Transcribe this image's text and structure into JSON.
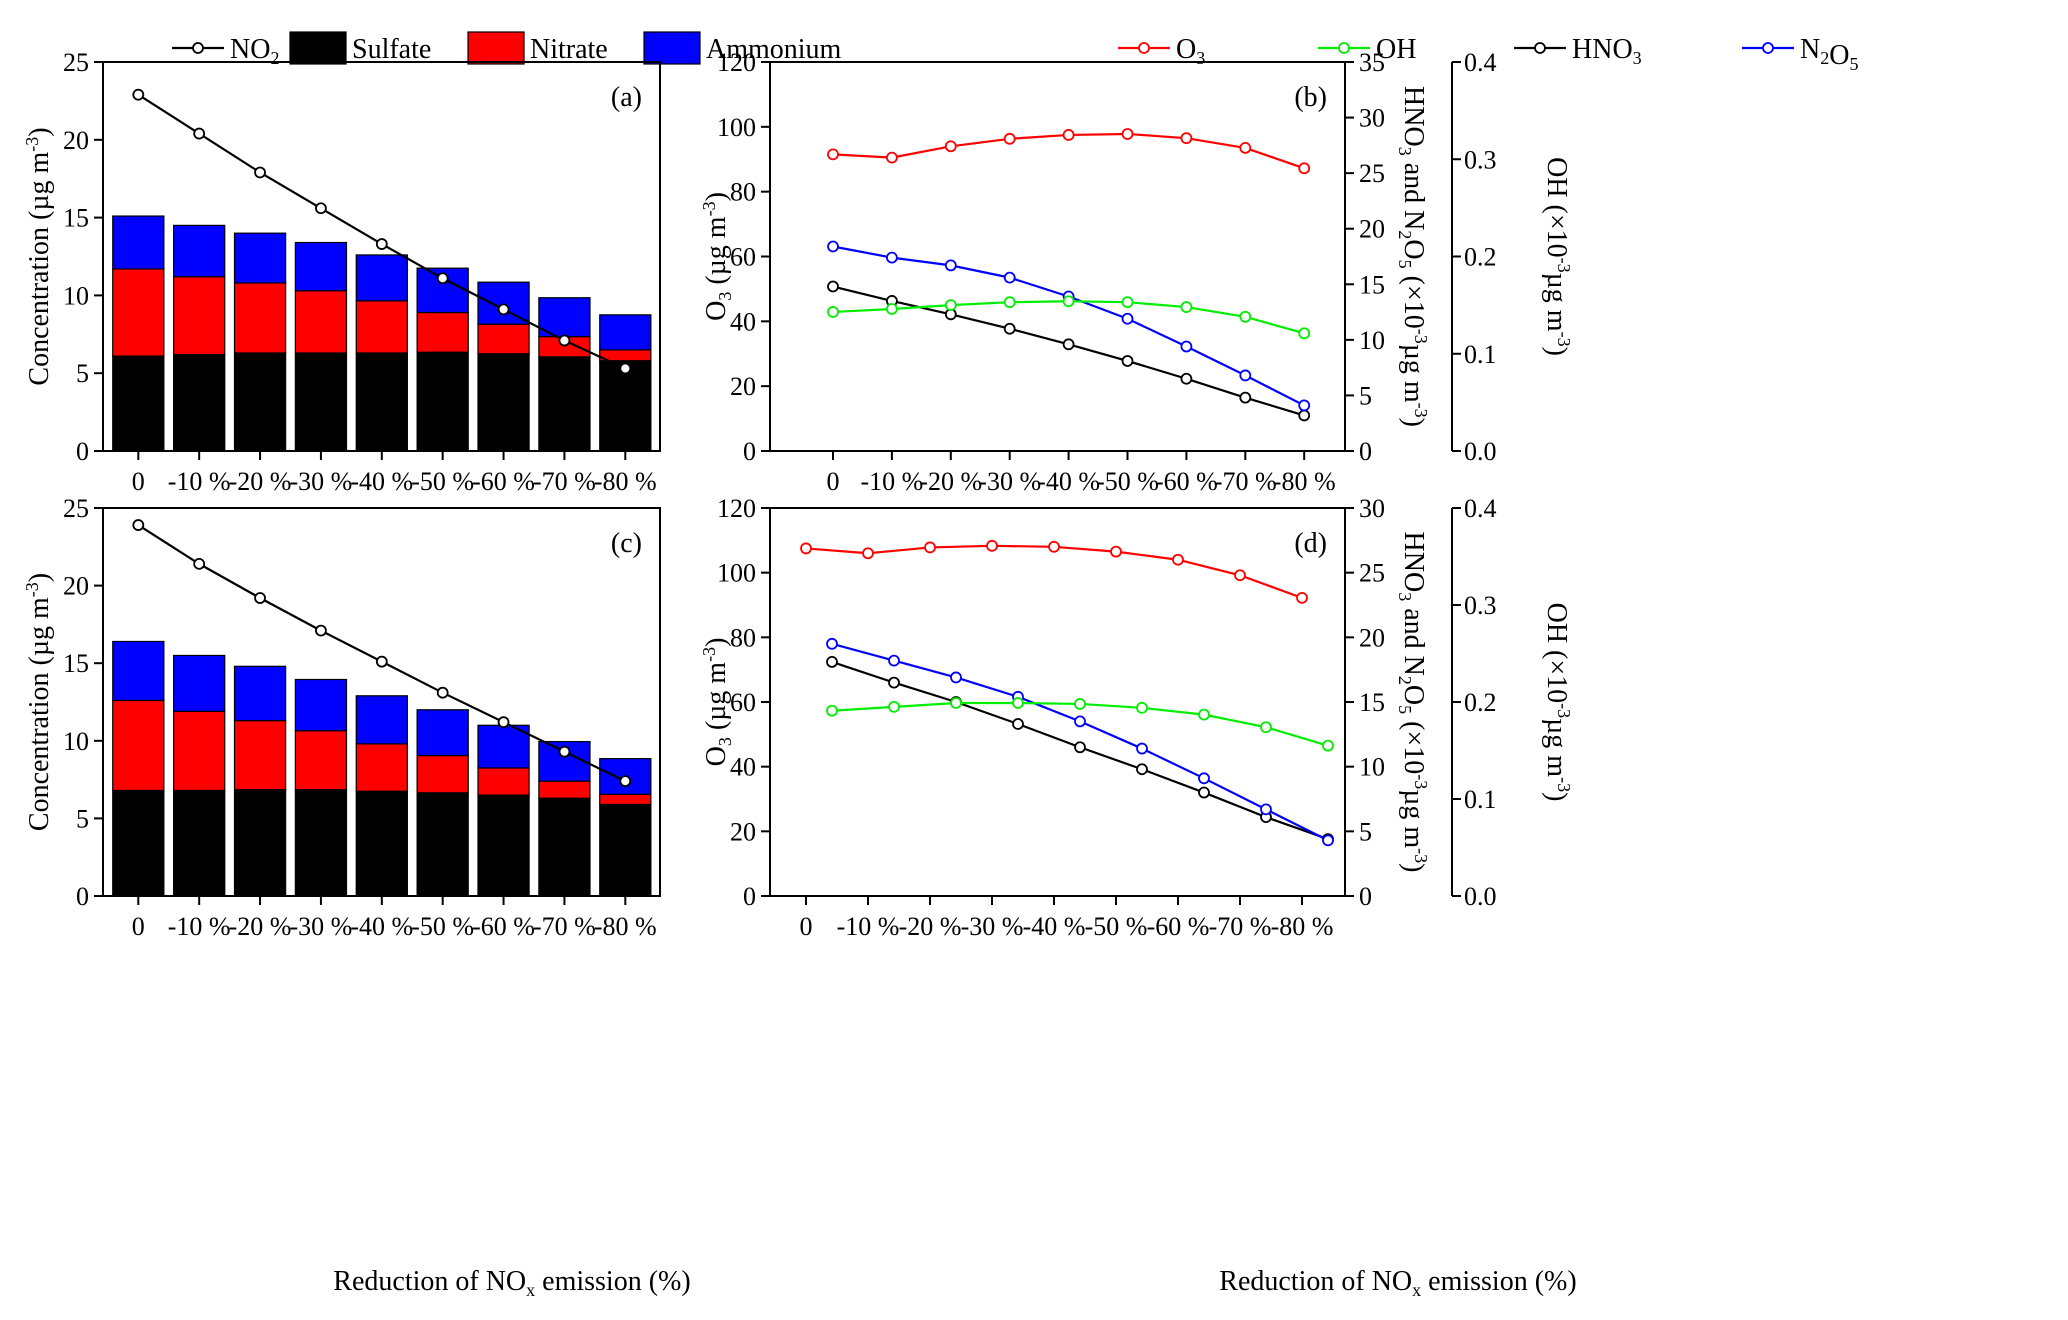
{
  "legends": {
    "left": [
      {
        "sym": "line",
        "color": "#000000",
        "html": "NO<tspan class='sub' dy='6'>2</tspan>"
      },
      {
        "sym": "box",
        "color": "#000000",
        "html": "Sulfate"
      },
      {
        "sym": "box",
        "color": "#ff0000",
        "html": "Nitrate"
      },
      {
        "sym": "box",
        "color": "#0000ff",
        "html": "Ammonium"
      }
    ],
    "right": [
      {
        "sym": "line",
        "color": "#ff0000",
        "html": "O<tspan class='sub' dy='6'>3</tspan>"
      },
      {
        "sym": "line",
        "color": "#00ee00",
        "html": "OH"
      },
      {
        "sym": "line",
        "color": "#000000",
        "html": "HNO<tspan class='sub' dy='6'>3</tspan>"
      },
      {
        "sym": "line",
        "color": "#0000ff",
        "html": "N<tspan class='sub' dy='6'>2</tspan>O<tspan class='sub' dy='6'>5</tspan>"
      }
    ]
  },
  "xlabel_bottom_left": "Reduction of NO<tspan class='sub' dy='6'>x</tspan><tspan dy='-6'> emission (%)</tspan>",
  "xlabel_bottom_right": "Reduction of NO<tspan class='sub' dy='6'>x</tspan><tspan dy='-6'> emission (%)</tspan>",
  "chart_data": [
    {
      "panel": "(a)",
      "type": "bar",
      "stacked": true,
      "categories": [
        "0",
        "-10 %",
        "-20 %",
        "-30 %",
        "-40 %",
        "-50 %",
        "-60 %",
        "-70 %",
        "-80 %"
      ],
      "ylabel": "Concentration (µg m<tspan class='sub' dy='-10'>-3</tspan><tspan dy='10'>)</tspan>",
      "ylim": [
        0,
        25
      ],
      "yticks": [
        0,
        5,
        10,
        15,
        20,
        25
      ],
      "series": [
        {
          "name": "Sulfate",
          "color": "#000000",
          "values": [
            6.1,
            6.2,
            6.3,
            6.3,
            6.3,
            6.35,
            6.25,
            6.05,
            5.8
          ]
        },
        {
          "name": "Nitrate",
          "color": "#ff0000",
          "values": [
            5.6,
            5.0,
            4.5,
            4.0,
            3.35,
            2.55,
            1.9,
            1.3,
            0.7
          ]
        },
        {
          "name": "Ammonium",
          "color": "#0000ff",
          "values": [
            3.4,
            3.3,
            3.2,
            3.1,
            2.95,
            2.85,
            2.7,
            2.5,
            2.25
          ]
        },
        {
          "name": "NO2",
          "type": "line",
          "color": "#000000",
          "values": [
            22.9,
            20.4,
            17.9,
            15.6,
            13.3,
            11.1,
            9.1,
            7.1,
            5.3
          ]
        }
      ]
    },
    {
      "panel": "(b)",
      "type": "line",
      "categories": [
        "0",
        "-10 %",
        "-20 %",
        "-30 %",
        "-40 %",
        "-50 %",
        "-60 %",
        "-70 %",
        "-80 %"
      ],
      "ylabel": "O<tspan class='sub' dy='6'>3</tspan><tspan dy='-6'> (µg m</tspan><tspan class='sub' dy='-10'>-3</tspan><tspan dy='10'>)</tspan>",
      "ylabel_right": "HNO<tspan class='sub' dy='6'>3</tspan><tspan dy='-6'> and N</tspan><tspan class='sub' dy='6'>2</tspan><tspan dy='-6'>O</tspan><tspan class='sub' dy='6'>5</tspan><tspan dy='-6'> (×10</tspan><tspan class='sub' dy='-10'>-3</tspan><tspan dy='10'>µg m</tspan><tspan class='sub' dy='-10'>-3</tspan><tspan dy='10'>)</tspan>",
      "ylabel_right2": "OH (×10<tspan class='sub' dy='-10'>-3</tspan><tspan dy='10'>µg m</tspan><tspan class='sub' dy='-10'>-3</tspan><tspan dy='10'>)</tspan>",
      "ylim": [
        0,
        120
      ],
      "yticks": [
        0,
        20,
        40,
        60,
        80,
        100,
        120
      ],
      "ylim_right": [
        0,
        35
      ],
      "yticks_right": [
        0,
        5,
        10,
        15,
        20,
        25,
        30,
        35
      ],
      "ylim_right2": [
        0,
        0.4
      ],
      "yticks_right2": [
        "0.0",
        "0.1",
        "0.2",
        "0.3",
        "0.4"
      ],
      "series": [
        {
          "name": "O3",
          "axis": "left",
          "color": "#ff0000",
          "values": [
            91.5,
            90.5,
            94,
            96.3,
            97.5,
            97.8,
            96.5,
            93.5,
            87.2
          ]
        },
        {
          "name": "OH",
          "axis": "right2",
          "color": "#00ee00",
          "values": [
            0.143,
            0.146,
            0.15,
            0.153,
            0.154,
            0.153,
            0.148,
            0.138,
            0.121
          ]
        },
        {
          "name": "HNO3",
          "axis": "right",
          "color": "#000000",
          "values": [
            14.8,
            13.5,
            12.3,
            11.0,
            9.6,
            8.1,
            6.5,
            4.8,
            3.2
          ]
        },
        {
          "name": "N2O5",
          "axis": "right",
          "color": "#0000ff",
          "values": [
            18.4,
            17.4,
            16.7,
            15.6,
            13.9,
            11.9,
            9.4,
            6.8,
            4.1
          ]
        }
      ]
    },
    {
      "panel": "(c)",
      "type": "bar",
      "stacked": true,
      "categories": [
        "0",
        "-10 %",
        "-20 %",
        "-30 %",
        "-40 %",
        "-50 %",
        "-60 %",
        "-70 %",
        "-80 %"
      ],
      "ylabel": "Concentration (µg m<tspan class='sub' dy='-10'>-3</tspan><tspan dy='10'>)</tspan>",
      "ylim": [
        0,
        25
      ],
      "yticks": [
        0,
        5,
        10,
        15,
        20,
        25
      ],
      "series": [
        {
          "name": "Sulfate",
          "color": "#000000",
          "values": [
            6.8,
            6.8,
            6.85,
            6.85,
            6.75,
            6.65,
            6.5,
            6.3,
            5.9
          ]
        },
        {
          "name": "Nitrate",
          "color": "#ff0000",
          "values": [
            5.8,
            5.1,
            4.45,
            3.8,
            3.05,
            2.4,
            1.75,
            1.1,
            0.65
          ]
        },
        {
          "name": "Ammonium",
          "color": "#0000ff",
          "values": [
            3.8,
            3.6,
            3.5,
            3.3,
            3.1,
            2.95,
            2.75,
            2.55,
            2.3
          ]
        },
        {
          "name": "NO2",
          "type": "line",
          "color": "#000000",
          "values": [
            23.9,
            21.4,
            19.2,
            17.1,
            15.1,
            13.1,
            11.2,
            9.3,
            7.4
          ]
        }
      ]
    },
    {
      "panel": "(d)",
      "type": "line",
      "categories": [
        "0",
        "-10 %",
        "-20 %",
        "-30 %",
        "-40 %",
        "-50 %",
        "-60 %",
        "-70 %",
        "-80 %"
      ],
      "ylabel": "O<tspan class='sub' dy='6'>3</tspan><tspan dy='-6'> (µg m</tspan><tspan class='sub' dy='-10'>-3</tspan><tspan dy='10'>)</tspan>",
      "ylabel_right": "HNO<tspan class='sub' dy='6'>3</tspan><tspan dy='-6'> and N</tspan><tspan class='sub' dy='6'>2</tspan><tspan dy='-6'>O</tspan><tspan class='sub' dy='6'>5</tspan><tspan dy='-6'> (×10</tspan><tspan class='sub' dy='-10'>-3</tspan><tspan dy='10'>µg m</tspan><tspan class='sub' dy='-10'>-3</tspan><tspan dy='10'>)</tspan>",
      "ylabel_right2": "OH (×10<tspan class='sub' dy='-10'>-3</tspan><tspan dy='10'>µg m</tspan><tspan class='sub' dy='-10'>-3</tspan><tspan dy='10'>)</tspan>",
      "ylim": [
        0,
        120
      ],
      "yticks": [
        0,
        20,
        40,
        60,
        80,
        100,
        120
      ],
      "ylim_right": [
        0,
        30
      ],
      "yticks_right": [
        0,
        5,
        10,
        15,
        20,
        25,
        30
      ],
      "ylim_right2": [
        0,
        0.4
      ],
      "yticks_right2": [
        "0.0",
        "0.1",
        "0.2",
        "0.3",
        "0.4"
      ],
      "series": [
        {
          "name": "O3",
          "axis": "left",
          "color": "#ff0000",
          "values": [
            107.5,
            106,
            107.8,
            108.3,
            108,
            106.5,
            104,
            99.2,
            92.2
          ]
        },
        {
          "name": "OH",
          "axis": "right2",
          "color": "#00ee00",
          "values": [
            0.191,
            0.195,
            0.199,
            0.199,
            0.198,
            0.194,
            0.187,
            0.174,
            0.155
          ]
        },
        {
          "name": "HNO3",
          "axis": "right",
          "color": "#000000",
          "values": [
            18.1,
            16.5,
            15.0,
            13.3,
            11.5,
            9.8,
            8.0,
            6.1,
            4.4
          ]
        },
        {
          "name": "N2O5",
          "axis": "right",
          "color": "#0000ff",
          "values": [
            19.5,
            18.2,
            16.9,
            15.4,
            13.5,
            11.4,
            9.1,
            6.7,
            4.3
          ]
        }
      ]
    }
  ]
}
